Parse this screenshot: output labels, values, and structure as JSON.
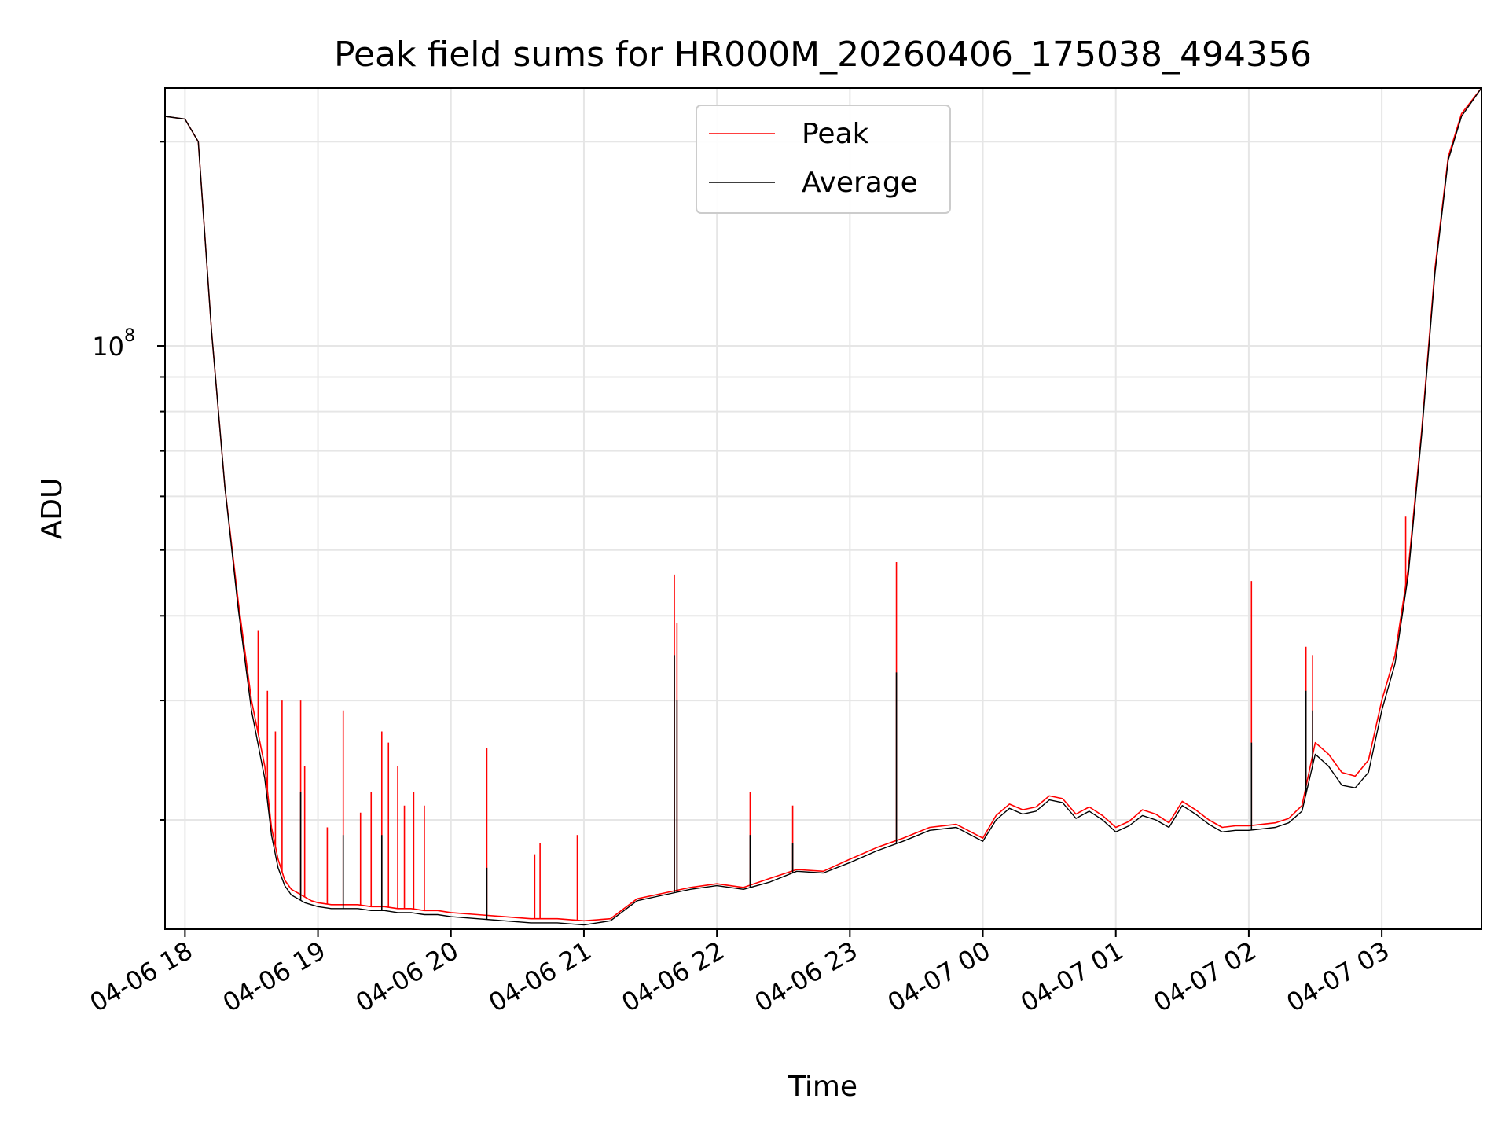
{
  "chart_data": {
    "type": "line",
    "title": "Peak field sums for HR000M_20260406_175038_494356",
    "xlabel": "Time",
    "ylabel": "ADU",
    "yscale": "log",
    "ylim": [
      13800000,
      240000000
    ],
    "xlim": [
      -0.15,
      9.75
    ],
    "x_units": "hours after 2026-04-06 18:00",
    "grid": true,
    "legend_position": "upper center",
    "x_ticks": [
      {
        "value": 0,
        "label": "04-06 18"
      },
      {
        "value": 1,
        "label": "04-06 19"
      },
      {
        "value": 2,
        "label": "04-06 20"
      },
      {
        "value": 3,
        "label": "04-06 21"
      },
      {
        "value": 4,
        "label": "04-06 22"
      },
      {
        "value": 5,
        "label": "04-06 23"
      },
      {
        "value": 6,
        "label": "04-07 00"
      },
      {
        "value": 7,
        "label": "04-07 01"
      },
      {
        "value": 8,
        "label": "04-07 02"
      },
      {
        "value": 9,
        "label": "04-07 03"
      }
    ],
    "y_ticks": [
      {
        "value": 100000000,
        "base": "10",
        "exp": "8"
      }
    ],
    "series": [
      {
        "name": "Peak",
        "color": "#ff0000",
        "x": [
          -0.15,
          0.0,
          0.1,
          0.2,
          0.3,
          0.4,
          0.5,
          0.6,
          0.65,
          0.7,
          0.75,
          0.8,
          0.85,
          0.9,
          0.95,
          1.0,
          1.1,
          1.2,
          1.3,
          1.4,
          1.5,
          1.6,
          1.7,
          1.8,
          1.9,
          2.0,
          2.2,
          2.4,
          2.6,
          2.8,
          3.0,
          3.2,
          3.4,
          3.6,
          3.8,
          4.0,
          4.2,
          4.4,
          4.6,
          4.8,
          5.0,
          5.2,
          5.4,
          5.6,
          5.8,
          6.0,
          6.1,
          6.2,
          6.3,
          6.4,
          6.5,
          6.6,
          6.7,
          6.8,
          6.9,
          7.0,
          7.1,
          7.2,
          7.3,
          7.4,
          7.5,
          7.6,
          7.7,
          7.8,
          7.9,
          8.0,
          8.1,
          8.2,
          8.3,
          8.4,
          8.5,
          8.6,
          8.7,
          8.8,
          8.9,
          9.0,
          9.1,
          9.2,
          9.3,
          9.4,
          9.5,
          9.6,
          9.75
        ],
        "y": [
          218000000,
          216000000,
          200000000,
          105000000,
          62000000,
          42000000,
          30000000,
          24000000,
          19500000,
          17500000,
          16300000,
          15800000,
          15600000,
          15400000,
          15200000,
          15100000,
          15000000,
          15000000,
          15000000,
          14900000,
          14900000,
          14800000,
          14800000,
          14700000,
          14700000,
          14600000,
          14500000,
          14400000,
          14300000,
          14300000,
          14200000,
          14300000,
          15300000,
          15600000,
          15900000,
          16100000,
          15900000,
          16400000,
          16900000,
          16800000,
          17500000,
          18200000,
          18800000,
          19500000,
          19700000,
          18800000,
          20300000,
          21100000,
          20700000,
          20900000,
          21700000,
          21500000,
          20400000,
          20900000,
          20300000,
          19500000,
          19900000,
          20700000,
          20400000,
          19800000,
          21300000,
          20700000,
          20000000,
          19500000,
          19600000,
          19600000,
          19700000,
          19800000,
          20100000,
          21000000,
          26000000,
          25000000,
          23500000,
          23200000,
          24500000,
          30000000,
          35000000,
          47000000,
          75000000,
          130000000,
          190000000,
          220000000,
          240000000
        ],
        "spikes": [
          {
            "x": 0.55,
            "y": 38000000
          },
          {
            "x": 0.62,
            "y": 31000000
          },
          {
            "x": 0.68,
            "y": 27000000
          },
          {
            "x": 0.73,
            "y": 30000000
          },
          {
            "x": 0.87,
            "y": 30000000
          },
          {
            "x": 0.9,
            "y": 24000000
          },
          {
            "x": 1.07,
            "y": 19500000
          },
          {
            "x": 1.19,
            "y": 29000000
          },
          {
            "x": 1.32,
            "y": 20500000
          },
          {
            "x": 1.4,
            "y": 22000000
          },
          {
            "x": 1.48,
            "y": 27000000
          },
          {
            "x": 1.53,
            "y": 26000000
          },
          {
            "x": 1.6,
            "y": 24000000
          },
          {
            "x": 1.65,
            "y": 21000000
          },
          {
            "x": 1.72,
            "y": 22000000
          },
          {
            "x": 1.8,
            "y": 21000000
          },
          {
            "x": 2.27,
            "y": 25500000
          },
          {
            "x": 2.63,
            "y": 17800000
          },
          {
            "x": 2.67,
            "y": 18500000
          },
          {
            "x": 2.95,
            "y": 19000000
          },
          {
            "x": 3.68,
            "y": 46000000
          },
          {
            "x": 3.7,
            "y": 39000000
          },
          {
            "x": 4.25,
            "y": 22000000
          },
          {
            "x": 4.57,
            "y": 21000000
          },
          {
            "x": 5.35,
            "y": 48000000
          },
          {
            "x": 8.02,
            "y": 45000000
          },
          {
            "x": 8.43,
            "y": 36000000
          },
          {
            "x": 8.48,
            "y": 35000000
          },
          {
            "x": 9.18,
            "y": 56000000
          },
          {
            "x": 9.28,
            "y": 68000000
          }
        ]
      },
      {
        "name": "Average",
        "color": "#000000",
        "x": [
          -0.15,
          0.0,
          0.1,
          0.2,
          0.3,
          0.4,
          0.5,
          0.6,
          0.65,
          0.7,
          0.75,
          0.8,
          0.85,
          0.9,
          0.95,
          1.0,
          1.1,
          1.2,
          1.3,
          1.4,
          1.5,
          1.6,
          1.7,
          1.8,
          1.9,
          2.0,
          2.2,
          2.4,
          2.6,
          2.8,
          3.0,
          3.2,
          3.4,
          3.6,
          3.8,
          4.0,
          4.2,
          4.4,
          4.6,
          4.8,
          5.0,
          5.2,
          5.4,
          5.6,
          5.8,
          6.0,
          6.1,
          6.2,
          6.3,
          6.4,
          6.5,
          6.6,
          6.7,
          6.8,
          6.9,
          7.0,
          7.1,
          7.2,
          7.3,
          7.4,
          7.5,
          7.6,
          7.7,
          7.8,
          7.9,
          8.0,
          8.1,
          8.2,
          8.3,
          8.4,
          8.5,
          8.6,
          8.7,
          8.8,
          8.9,
          9.0,
          9.1,
          9.2,
          9.3,
          9.4,
          9.5,
          9.6,
          9.75
        ],
        "y": [
          218000000,
          216000000,
          200000000,
          105000000,
          62000000,
          41000000,
          29000000,
          23000000,
          19000000,
          17000000,
          16000000,
          15500000,
          15300000,
          15100000,
          15000000,
          14900000,
          14800000,
          14800000,
          14800000,
          14700000,
          14700000,
          14600000,
          14600000,
          14500000,
          14500000,
          14400000,
          14300000,
          14200000,
          14100000,
          14100000,
          14000000,
          14200000,
          15200000,
          15500000,
          15800000,
          16000000,
          15800000,
          16200000,
          16800000,
          16700000,
          17300000,
          18000000,
          18600000,
          19300000,
          19500000,
          18600000,
          20000000,
          20800000,
          20400000,
          20600000,
          21400000,
          21200000,
          20100000,
          20600000,
          20000000,
          19200000,
          19600000,
          20300000,
          20000000,
          19500000,
          21000000,
          20400000,
          19700000,
          19200000,
          19300000,
          19300000,
          19400000,
          19500000,
          19800000,
          20600000,
          25000000,
          24000000,
          22500000,
          22300000,
          23500000,
          29000000,
          34000000,
          46000000,
          74000000,
          128000000,
          188000000,
          218000000,
          240000000
        ],
        "spikes": [
          {
            "x": 0.87,
            "y": 22000000
          },
          {
            "x": 1.19,
            "y": 19000000
          },
          {
            "x": 1.48,
            "y": 19000000
          },
          {
            "x": 2.27,
            "y": 17000000
          },
          {
            "x": 3.68,
            "y": 35000000
          },
          {
            "x": 3.7,
            "y": 30000000
          },
          {
            "x": 4.25,
            "y": 19000000
          },
          {
            "x": 4.57,
            "y": 18500000
          },
          {
            "x": 5.35,
            "y": 33000000
          },
          {
            "x": 8.02,
            "y": 26000000
          },
          {
            "x": 8.43,
            "y": 31000000
          },
          {
            "x": 8.48,
            "y": 29000000
          }
        ]
      }
    ]
  }
}
